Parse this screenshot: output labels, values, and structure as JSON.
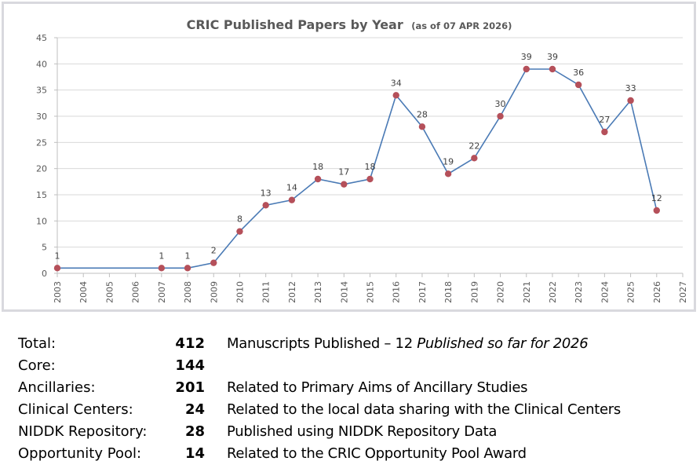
{
  "chart_data": {
    "type": "line",
    "title": "CRIC Published Papers by Year",
    "subtitle": "(as of 07 APR 2026)",
    "xlabel": "",
    "ylabel": "",
    "x_ticks": [
      "2003",
      "2004",
      "2005",
      "2006",
      "2007",
      "2008",
      "2009",
      "2010",
      "2011",
      "2012",
      "2013",
      "2014",
      "2015",
      "2016",
      "2017",
      "2018",
      "2019",
      "2020",
      "2021",
      "2022",
      "2023",
      "2024",
      "2025",
      "2026",
      "2027"
    ],
    "xlim": [
      2003,
      2027
    ],
    "ylim": [
      0,
      45
    ],
    "y_ticks": [
      0,
      5,
      10,
      15,
      20,
      25,
      30,
      35,
      40,
      45
    ],
    "grid": true,
    "legend": "none",
    "series": [
      {
        "name": "Published Papers",
        "x": [
          2003,
          2007,
          2008,
          2009,
          2010,
          2011,
          2012,
          2013,
          2014,
          2015,
          2016,
          2017,
          2018,
          2019,
          2020,
          2021,
          2022,
          2023,
          2024,
          2025,
          2026
        ],
        "values": [
          1,
          1,
          1,
          2,
          8,
          13,
          14,
          18,
          17,
          18,
          34,
          28,
          19,
          22,
          30,
          39,
          39,
          36,
          27,
          33,
          12
        ],
        "line_color": "#4a7ab5",
        "marker_color": "#b5505a"
      }
    ]
  },
  "summary": {
    "rows": [
      {
        "label": "Total:",
        "value": "412",
        "desc": "Manuscripts Published – 12 ",
        "desc_italic": "Published so far for 2026"
      },
      {
        "label": "Core:",
        "value": "144",
        "desc": "",
        "desc_italic": ""
      },
      {
        "label": "Ancillaries:",
        "value": "201",
        "desc": "Related to Primary Aims of Ancillary Studies",
        "desc_italic": ""
      },
      {
        "label": "Clinical Centers:",
        "value": "24",
        "desc": "Related to the local data sharing with the Clinical Centers",
        "desc_italic": ""
      },
      {
        "label": "NIDDK Repository:",
        "value": "28",
        "desc": "Published using NIDDK Repository Data",
        "desc_italic": ""
      },
      {
        "label": "Opportunity Pool:",
        "value": "14",
        "desc": "Related to the CRIC Opportunity Pool Award",
        "desc_italic": ""
      }
    ]
  }
}
